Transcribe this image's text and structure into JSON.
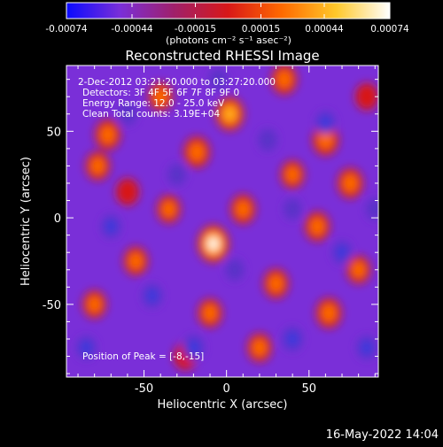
{
  "colorbar": {
    "ticks": [
      "-0.00074",
      "-0.00044",
      "-0.00015",
      "0.00015",
      "0.00044",
      "0.00074"
    ],
    "tick_values": [
      -0.00074,
      -0.00044,
      -0.00015,
      0.00015,
      0.00044,
      0.00074
    ],
    "range": [
      -0.00074,
      0.00074
    ],
    "unit_label": "(photons cm⁻² s⁻¹ asec⁻²)",
    "colors": [
      "#0a0aff",
      "#7a2fd8",
      "#a0206a",
      "#d81818",
      "#ff6a00",
      "#ffc82a",
      "#ffffff"
    ]
  },
  "annotations": {
    "time": "2-Dec-2012 03:21:20.000 to 03:27:20.000",
    "detectors": "Detectors: 3F 4F 5F 6F 7F 8F 9F 0",
    "energy": "Energy Range: 12.0 - 25.0 keV",
    "clean": "Clean     Total counts: 3.19E+04",
    "peak": "Position of Peak = [-8,-15]"
  },
  "footer": {
    "timestamp": "16-May-2022 14:04"
  },
  "chart_data": {
    "type": "heatmap",
    "title": "Reconstructed RHESSI Image",
    "xlabel": "Heliocentric X (arcsec)",
    "ylabel": "Heliocentric Y (arcsec)",
    "xlim": [
      -97,
      92
    ],
    "ylim": [
      -92,
      88
    ],
    "xticks": [
      -50,
      0,
      50
    ],
    "yticks": [
      -50,
      0,
      50
    ],
    "peak": {
      "x": -8,
      "y": -15
    },
    "blobs": [
      {
        "x": -8,
        "y": -15,
        "v": 1.0
      },
      {
        "x": 2,
        "y": 60,
        "v": 0.75
      },
      {
        "x": -18,
        "y": 38,
        "v": 0.6
      },
      {
        "x": -72,
        "y": 48,
        "v": 0.55
      },
      {
        "x": 60,
        "y": 45,
        "v": 0.6
      },
      {
        "x": 75,
        "y": 20,
        "v": 0.55
      },
      {
        "x": 35,
        "y": 80,
        "v": 0.55
      },
      {
        "x": -40,
        "y": 70,
        "v": 0.45
      },
      {
        "x": -78,
        "y": 30,
        "v": 0.45
      },
      {
        "x": 10,
        "y": 5,
        "v": 0.5
      },
      {
        "x": 55,
        "y": -5,
        "v": 0.5
      },
      {
        "x": -55,
        "y": -25,
        "v": 0.45
      },
      {
        "x": 30,
        "y": -38,
        "v": 0.5
      },
      {
        "x": -10,
        "y": -55,
        "v": 0.45
      },
      {
        "x": 62,
        "y": -55,
        "v": 0.55
      },
      {
        "x": -80,
        "y": -50,
        "v": 0.4
      },
      {
        "x": 20,
        "y": -75,
        "v": 0.45
      },
      {
        "x": -35,
        "y": 5,
        "v": 0.4
      },
      {
        "x": 80,
        "y": -30,
        "v": 0.4
      },
      {
        "x": -60,
        "y": 15,
        "v": 0.35
      },
      {
        "x": 40,
        "y": 25,
        "v": 0.4
      },
      {
        "x": -25,
        "y": -80,
        "v": 0.35
      },
      {
        "x": 85,
        "y": 70,
        "v": 0.35
      },
      {
        "x": -20,
        "y": -75,
        "v": -0.65
      },
      {
        "x": 40,
        "y": -70,
        "v": -0.6
      },
      {
        "x": -60,
        "y": 60,
        "v": -0.45
      },
      {
        "x": 60,
        "y": 55,
        "v": -0.5
      },
      {
        "x": -70,
        "y": -5,
        "v": -0.5
      },
      {
        "x": 25,
        "y": 45,
        "v": -0.45
      },
      {
        "x": -45,
        "y": -45,
        "v": -0.55
      },
      {
        "x": 70,
        "y": -20,
        "v": -0.5
      },
      {
        "x": 5,
        "y": -30,
        "v": -0.4
      },
      {
        "x": -85,
        "y": -75,
        "v": -0.5
      },
      {
        "x": 85,
        "y": -75,
        "v": -0.55
      },
      {
        "x": -30,
        "y": 25,
        "v": -0.4
      },
      {
        "x": 40,
        "y": 5,
        "v": -0.35
      },
      {
        "x": -5,
        "y": 80,
        "v": -0.4
      },
      {
        "x": 90,
        "y": 5,
        "v": -0.4
      }
    ]
  }
}
